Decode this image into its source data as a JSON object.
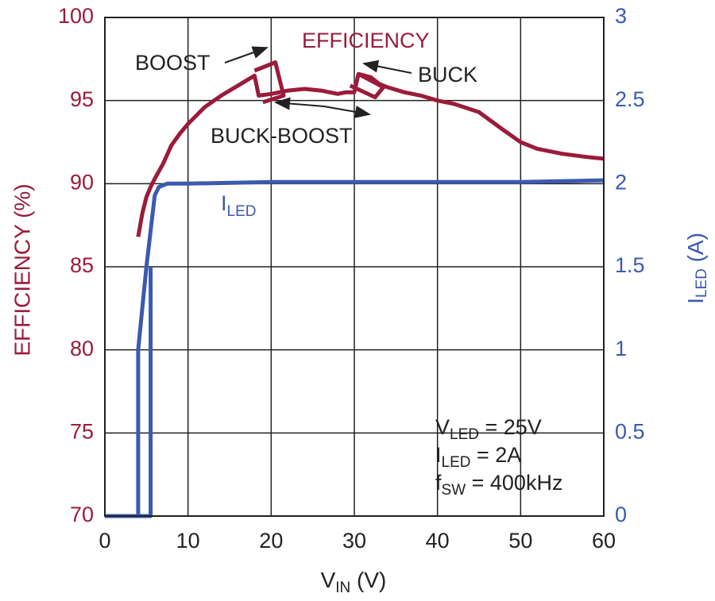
{
  "chart_data": {
    "type": "line",
    "title": "",
    "xlabel": "V",
    "xlabel_sub": "IN",
    "xlabel_unit": " (V)",
    "x_ticks": [
      0,
      10,
      20,
      30,
      40,
      50,
      60
    ],
    "xlim": [
      0,
      60
    ],
    "ylabel_left": "EFFICIENCY (%)",
    "ylim_left": [
      70,
      100
    ],
    "y_ticks_left": [
      70,
      75,
      80,
      85,
      90,
      95,
      100
    ],
    "ylabel_right": "I",
    "ylabel_right_sub": "LED",
    "ylabel_right_unit": " (A)",
    "ylim_right": [
      0,
      3
    ],
    "y_ticks_right": [
      "0",
      "0.5",
      "1",
      "1.5",
      "2",
      "2.5",
      "3"
    ],
    "y_tick_values_right": [
      0,
      0.5,
      1,
      1.5,
      2,
      2.5,
      3
    ],
    "grid": true,
    "colors": {
      "efficiency": "#9b1b3a",
      "current": "#3b5ab0",
      "grid": "#222222"
    },
    "series": [
      {
        "axis": "left",
        "color": "#9b1b3a",
        "x": [
          4,
          4.5,
          5,
          5.5,
          6,
          7,
          8,
          9,
          10,
          12,
          14,
          16,
          18,
          18.5,
          20,
          22,
          24,
          26,
          28,
          29,
          30,
          30.5,
          32,
          33,
          34,
          36,
          38,
          40,
          42,
          45,
          48,
          50,
          52,
          55,
          58,
          60
        ],
        "y": [
          86.8,
          88.2,
          89.2,
          89.8,
          90.3,
          91.2,
          92.3,
          93.0,
          93.6,
          94.6,
          95.3,
          95.9,
          96.5,
          95.3,
          95.4,
          95.6,
          95.7,
          95.6,
          95.4,
          95.5,
          95.5,
          96.6,
          96.4,
          96.0,
          95.8,
          95.5,
          95.3,
          95.0,
          94.8,
          94.3,
          93.2,
          92.5,
          92.1,
          91.8,
          91.6,
          91.5
        ]
      },
      {
        "axis": "left",
        "color": "#9b1b3a",
        "x": [
          18,
          20.5,
          21.5,
          19
        ],
        "y": [
          96.8,
          97.3,
          95.3,
          94.9
        ]
      },
      {
        "axis": "left",
        "color": "#9b1b3a",
        "x": [
          30.5,
          33.5,
          32.5,
          29.5
        ],
        "y": [
          96.6,
          95.8,
          95.2,
          95.9
        ]
      },
      {
        "axis": "right",
        "color": "#3b5ab0",
        "x": [
          0,
          4,
          4,
          5,
          6,
          6.5,
          7.5,
          10,
          20,
          30,
          40,
          50,
          60
        ],
        "y": [
          0,
          0,
          1.0,
          1.5,
          1.93,
          1.98,
          2.0,
          2.0,
          2.01,
          2.01,
          2.01,
          2.01,
          2.02
        ]
      },
      {
        "axis": "right",
        "color": "#3b5ab0",
        "x": [
          0,
          5.5,
          5.5
        ],
        "y": [
          0,
          0,
          1.5
        ]
      }
    ],
    "annotations": {
      "efficiency": "EFFICIENCY",
      "boost": "BOOST",
      "buck": "BUCK",
      "buck_boost": "BUCK-BOOST",
      "iled_main": "I",
      "iled_sub": "LED",
      "cond1_main": "V",
      "cond1_sub": "LED",
      "cond1_val": " = 25V",
      "cond2_main": "I",
      "cond2_sub": "LED",
      "cond2_val": " = 2A",
      "cond3_main": "f",
      "cond3_sub": "SW",
      "cond3_val": " = 400kHz"
    }
  }
}
